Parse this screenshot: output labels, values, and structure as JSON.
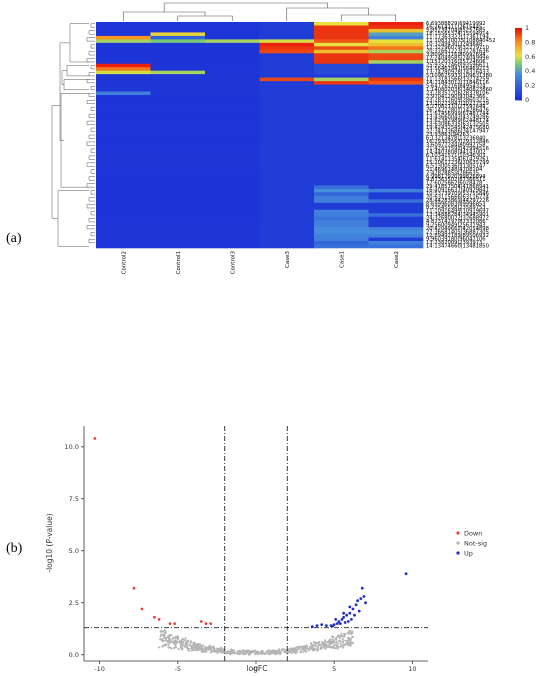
{
  "panels": {
    "a_label": "(a)",
    "b_label": "(b)"
  },
  "colors": {
    "down": "#e8423a",
    "notsig": "#b5b5b5",
    "up": "#1f2ec4",
    "heat_low": "#1a2fd6",
    "heat_high": "#e8140c"
  },
  "chart_data": [
    {
      "type": "heatmap",
      "columns": [
        "Control2",
        "Control1",
        "Control3",
        "Case3",
        "Case1",
        "Case2"
      ],
      "colorbar_ticks": [
        "1",
        "0.8",
        "0.6",
        "0.4",
        "0.2",
        "0"
      ],
      "scale": [
        0,
        1
      ],
      "rows": [
        {
          "label": "6:69388829|69419992",
          "values": [
            0.02,
            0.02,
            0.02,
            0.05,
            0.62,
            0.98
          ]
        },
        {
          "label": "16:2614111|2615445",
          "values": [
            0.02,
            0.02,
            0.02,
            0.05,
            0.95,
            0.95
          ]
        },
        {
          "label": "5:85238704|85257685",
          "values": [
            0.02,
            0.02,
            0.02,
            0.05,
            0.95,
            0.7
          ]
        },
        {
          "label": "18:15565374|15594914",
          "values": [
            0.02,
            0.65,
            0.02,
            0.05,
            0.95,
            0.4
          ]
        },
        {
          "label": "11:17363322|17361194",
          "values": [
            0.8,
            0.2,
            0.02,
            0.05,
            0.95,
            0.3
          ]
        },
        {
          "label": "11:108370075|108840452",
          "values": [
            0.55,
            0.5,
            0.55,
            0.6,
            0.9,
            0.62
          ]
        },
        {
          "label": "10:3249430|3249848",
          "values": [
            0.02,
            0.02,
            0.02,
            0.98,
            0.62,
            0.7
          ]
        },
        {
          "label": "12:32796079|32779710",
          "values": [
            0.02,
            0.02,
            0.02,
            0.95,
            0.92,
            0.85
          ]
        },
        {
          "label": "20:37661223|37781636",
          "values": [
            0.02,
            0.02,
            0.02,
            0.92,
            0.7,
            0.55
          ]
        },
        {
          "label": "3:80963116|80992694",
          "values": [
            0.02,
            0.02,
            0.02,
            0.05,
            0.95,
            0.92
          ]
        },
        {
          "label": "12:24049585|24049998",
          "values": [
            0.02,
            0.02,
            0.02,
            0.05,
            0.95,
            0.92
          ]
        },
        {
          "label": "1:15720316|15724606",
          "values": [
            0.02,
            0.02,
            0.02,
            0.05,
            0.95,
            0.55
          ]
        },
        {
          "label": "25:93522460|93596611",
          "values": [
            0.98,
            0.02,
            0.02,
            0.05,
            0.1,
            0.05
          ]
        },
        {
          "label": "23:56461941|56469213",
          "values": [
            0.85,
            0.02,
            0.02,
            0.05,
            0.1,
            0.05
          ]
        },
        {
          "label": "13:74280928|74316433",
          "values": [
            0.6,
            0.55,
            0.02,
            0.05,
            0.1,
            0.05
          ]
        },
        {
          "label": "5:109625933|109631380",
          "values": [
            0.02,
            0.02,
            0.02,
            0.05,
            0.05,
            0.05
          ]
        },
        {
          "label": "11:13181566|13274259",
          "values": [
            0.02,
            0.02,
            0.02,
            0.92,
            0.55,
            0.95
          ]
        },
        {
          "label": "14:71843012|71846116",
          "values": [
            0.02,
            0.02,
            0.02,
            0.05,
            0.95,
            0.9
          ]
        },
        {
          "label": "5:64776216|64954324",
          "values": [
            0.02,
            0.02,
            0.02,
            0.05,
            0.05,
            0.05
          ]
        },
        {
          "label": "1:140802036|140823860",
          "values": [
            0.02,
            0.02,
            0.02,
            0.05,
            0.05,
            0.05
          ]
        },
        {
          "label": "23:28357206|28378106",
          "values": [
            0.3,
            0.02,
            0.02,
            0.05,
            0.05,
            0.05
          ]
        },
        {
          "label": "2:97041290|97042366",
          "values": [
            0.02,
            0.02,
            0.02,
            0.05,
            0.05,
            0.05
          ]
        },
        {
          "label": "23:28377609|28603215",
          "values": [
            0.02,
            0.02,
            0.02,
            0.05,
            0.05,
            0.05
          ]
        },
        {
          "label": "13:20273947|20277529",
          "values": [
            0.02,
            0.02,
            0.02,
            0.05,
            0.05,
            0.05
          ]
        },
        {
          "label": "5:27082110|27597649",
          "values": [
            0.02,
            0.02,
            0.02,
            0.05,
            0.05,
            0.05
          ]
        },
        {
          "label": "26:14272807|14286476",
          "values": [
            0.02,
            0.02,
            0.02,
            0.05,
            0.05,
            0.05
          ]
        },
        {
          "label": "11:67456999|67487744",
          "values": [
            0.02,
            0.02,
            0.02,
            0.05,
            0.05,
            0.05
          ]
        },
        {
          "label": "13:43660043|43749286",
          "values": [
            0.02,
            0.02,
            0.02,
            0.05,
            0.05,
            0.05
          ]
        },
        {
          "label": "13:62382989|62448174",
          "values": [
            0.02,
            0.02,
            0.02,
            0.05,
            0.05,
            0.05
          ]
        },
        {
          "label": "13:63086335|63132505",
          "values": [
            0.02,
            0.02,
            0.02,
            0.05,
            0.05,
            0.05
          ]
        },
        {
          "label": "19:42432545|42475680",
          "values": [
            0.02,
            0.02,
            0.02,
            0.05,
            0.05,
            0.05
          ]
        },
        {
          "label": "22:34133686|34147947",
          "values": [
            0.02,
            0.02,
            0.02,
            0.05,
            0.05,
            0.05
          ]
        },
        {
          "label": "23:93863|94263",
          "values": [
            0.02,
            0.02,
            0.02,
            0.05,
            0.05,
            0.05
          ]
        },
        {
          "label": "6:13213478|13236840",
          "values": [
            0.02,
            0.02,
            0.02,
            0.05,
            0.05,
            0.05
          ]
        },
        {
          "label": "16:29303567|29312846",
          "values": [
            0.02,
            0.02,
            0.02,
            0.05,
            0.05,
            0.05
          ]
        },
        {
          "label": "3:60977244|60992758",
          "values": [
            0.02,
            0.02,
            0.02,
            0.05,
            0.05,
            0.05
          ]
        },
        {
          "label": "21:42937592|42994516",
          "values": [
            0.02,
            0.02,
            0.02,
            0.05,
            0.05,
            0.05
          ]
        },
        {
          "label": "14:4403808|44143002",
          "values": [
            0.02,
            0.02,
            0.02,
            0.05,
            0.05,
            0.05
          ]
        },
        {
          "label": "6:10341571|10346303",
          "values": [
            0.02,
            0.02,
            0.02,
            0.05,
            0.05,
            0.05
          ]
        },
        {
          "label": "11:61411354|61429261",
          "values": [
            0.02,
            0.02,
            0.02,
            0.05,
            0.05,
            0.05
          ]
        },
        {
          "label": "15:20617236|20635799",
          "values": [
            0.02,
            0.02,
            0.02,
            0.05,
            0.05,
            0.05
          ]
        },
        {
          "label": "6:51300536|51305147",
          "values": [
            0.02,
            0.02,
            0.02,
            0.05,
            0.05,
            0.05
          ]
        },
        {
          "label": "21:4696148|4708104",
          "values": [
            0.02,
            0.02,
            0.02,
            0.05,
            0.05,
            0.05
          ]
        },
        {
          "label": "7:4282885|4286635",
          "values": [
            0.02,
            0.02,
            0.02,
            0.05,
            0.05,
            0.05
          ]
        },
        {
          "label": "6:99817920|99826894",
          "values": [
            0.02,
            0.02,
            0.02,
            0.05,
            0.05,
            0.05
          ]
        },
        {
          "label": "4:87363502|87366511",
          "values": [
            0.02,
            0.02,
            0.02,
            0.05,
            0.05,
            0.05
          ]
        },
        {
          "label": "17:6025862|6028478",
          "values": [
            0.02,
            0.02,
            0.02,
            0.05,
            0.05,
            0.05
          ]
        },
        {
          "label": "29:41857504|41868941",
          "values": [
            0.02,
            0.02,
            0.02,
            0.05,
            0.25,
            0.05
          ]
        },
        {
          "label": "16:40916637|40929841",
          "values": [
            0.02,
            0.02,
            0.02,
            0.05,
            0.35,
            0.3
          ]
        },
        {
          "label": "10:53739709|53755846",
          "values": [
            0.02,
            0.02,
            0.02,
            0.05,
            0.2,
            0.05
          ]
        },
        {
          "label": "20:63115666|63116774",
          "values": [
            0.02,
            0.02,
            0.02,
            0.05,
            0.3,
            0.05
          ]
        },
        {
          "label": "28:44283869|44297226",
          "values": [
            0.02,
            0.02,
            0.02,
            0.05,
            0.3,
            0.25
          ]
        },
        {
          "label": "8:69996083|69996853",
          "values": [
            0.02,
            0.02,
            0.02,
            0.05,
            0.05,
            0.05
          ]
        },
        {
          "label": "8:23545558|23589753",
          "values": [
            0.02,
            0.02,
            0.02,
            0.05,
            0.05,
            0.05
          ]
        },
        {
          "label": "11:10916499|10919697",
          "values": [
            0.02,
            0.02,
            0.02,
            0.05,
            0.3,
            0.05
          ]
        },
        {
          "label": "13:34888284|34945901",
          "values": [
            0.02,
            0.02,
            0.02,
            0.05,
            0.3,
            0.25
          ]
        },
        {
          "label": "24:32680022|32688972",
          "values": [
            0.02,
            0.02,
            0.02,
            0.05,
            0.25,
            0.05
          ]
        },
        {
          "label": "4:87314297|87332086",
          "values": [
            0.02,
            0.02,
            0.02,
            0.05,
            0.3,
            0.05
          ]
        },
        {
          "label": "9:25600949|25631943",
          "values": [
            0.02,
            0.02,
            0.02,
            0.05,
            0.3,
            0.05
          ]
        },
        {
          "label": "20:42049662|42054898",
          "values": [
            0.02,
            0.02,
            0.02,
            0.05,
            0.35,
            0.3
          ]
        },
        {
          "label": "27:36681405|36887305",
          "values": [
            0.02,
            0.02,
            0.02,
            0.05,
            0.35,
            0.35
          ]
        },
        {
          "label": "12:89492189|89506932",
          "values": [
            0.02,
            0.02,
            0.02,
            0.05,
            0.3,
            0.3
          ]
        },
        {
          "label": "9:96039180|96047106",
          "values": [
            0.02,
            0.02,
            0.02,
            0.05,
            0.3,
            0.05
          ]
        },
        {
          "label": "13:2387009|2393973",
          "values": [
            0.02,
            0.02,
            0.02,
            0.05,
            0.2,
            0.3
          ]
        },
        {
          "label": "14:13474660|13481850",
          "values": [
            0.02,
            0.02,
            0.02,
            0.05,
            0.25,
            0.25
          ]
        }
      ]
    },
    {
      "type": "scatter",
      "xlabel": "logFC",
      "ylabel": "-log10 (P-value)",
      "xlim": [
        -11,
        11
      ],
      "ylim": [
        -0.3,
        11
      ],
      "xticks": [
        -10,
        -5,
        0,
        5,
        10
      ],
      "yticks": [
        0.0,
        2.5,
        5.0,
        7.5,
        10.0
      ],
      "ytick_labels": [
        "0.0",
        "2.5",
        "5.0",
        "7.5",
        "10.0"
      ],
      "legend_position": "right",
      "vlines": [
        -2,
        2
      ],
      "hline": 1.3,
      "series": [
        {
          "name": "Down",
          "color_key": "down",
          "points": [
            [
              -10.3,
              10.4
            ],
            [
              -7.8,
              3.2
            ],
            [
              -7.3,
              2.2
            ],
            [
              -6.5,
              1.8
            ],
            [
              -6.2,
              1.7
            ],
            [
              -5.5,
              1.5
            ],
            [
              -5.2,
              1.5
            ],
            [
              -3.5,
              1.6
            ],
            [
              -3.2,
              1.5
            ],
            [
              -2.9,
              1.5
            ]
          ]
        },
        {
          "name": "Not-sig",
          "color_key": "notsig",
          "points": "generated"
        },
        {
          "name": "Up",
          "color_key": "up",
          "points": [
            [
              9.6,
              3.9
            ],
            [
              6.8,
              3.2
            ],
            [
              6.4,
              2.4
            ],
            [
              6.2,
              2.2
            ],
            [
              6.0,
              2.0
            ],
            [
              5.8,
              1.9
            ],
            [
              5.6,
              1.8
            ],
            [
              5.5,
              1.7
            ],
            [
              5.3,
              1.6
            ],
            [
              5.2,
              1.5
            ],
            [
              5.0,
              1.45
            ],
            [
              4.8,
              1.4
            ],
            [
              4.5,
              1.4
            ],
            [
              4.2,
              1.45
            ],
            [
              7.0,
              2.5
            ],
            [
              6.6,
              2.1
            ],
            [
              6.1,
              1.7
            ],
            [
              5.9,
              1.6
            ],
            [
              5.7,
              1.55
            ],
            [
              6.9,
              2.8
            ],
            [
              6.3,
              1.9
            ],
            [
              5.4,
              1.5
            ],
            [
              4.9,
              1.38
            ],
            [
              3.9,
              1.4
            ],
            [
              3.6,
              1.35
            ],
            [
              6.7,
              2.7
            ],
            [
              6.5,
              2.6
            ],
            [
              6.0,
              2.3
            ],
            [
              5.6,
              2.0
            ],
            [
              5.1,
              1.7
            ]
          ]
        }
      ]
    }
  ]
}
